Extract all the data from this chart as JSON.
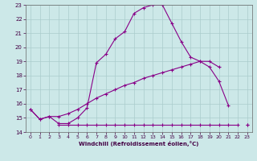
{
  "xlabel": "Windchill (Refroidissement éolien,°C)",
  "x": [
    0,
    1,
    2,
    3,
    4,
    5,
    6,
    7,
    8,
    9,
    10,
    11,
    12,
    13,
    14,
    15,
    16,
    17,
    18,
    19,
    20,
    21,
    22,
    23
  ],
  "line1": [
    15.6,
    14.9,
    15.1,
    14.6,
    14.6,
    15.0,
    15.7,
    18.9,
    19.5,
    20.6,
    21.1,
    22.4,
    22.8,
    23.0,
    23.0,
    21.7,
    20.4,
    19.3,
    19.0,
    18.6,
    17.6,
    15.9,
    null,
    14.5
  ],
  "line2": [
    15.6,
    14.9,
    15.1,
    15.1,
    15.3,
    15.6,
    16.0,
    16.4,
    16.7,
    17.0,
    17.3,
    17.5,
    17.8,
    18.0,
    18.2,
    18.4,
    18.6,
    18.8,
    19.0,
    19.0,
    18.6,
    null,
    null,
    14.5
  ],
  "line3": [
    null,
    null,
    null,
    14.5,
    14.5,
    14.5,
    14.5,
    14.5,
    14.5,
    14.5,
    14.5,
    14.5,
    14.5,
    14.5,
    14.5,
    14.5,
    14.5,
    14.5,
    14.5,
    14.5,
    14.5,
    14.5,
    14.5,
    null
  ],
  "bg_color": "#cce8e8",
  "grid_color": "#aacccc",
  "line_color": "#880088",
  "xlim": [
    -0.5,
    23.5
  ],
  "ylim": [
    14,
    23
  ],
  "yticks": [
    14,
    15,
    16,
    17,
    18,
    19,
    20,
    21,
    22,
    23
  ],
  "xticks": [
    0,
    1,
    2,
    3,
    4,
    5,
    6,
    7,
    8,
    9,
    10,
    11,
    12,
    13,
    14,
    15,
    16,
    17,
    18,
    19,
    20,
    21,
    22,
    23
  ]
}
